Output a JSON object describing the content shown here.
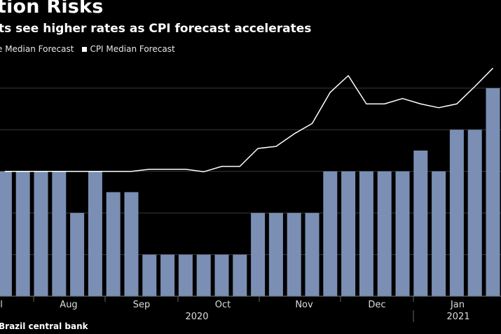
{
  "title": "tion Risks",
  "subtitle": "ts see higher rates as CPI forecast accelerates",
  "legend": {
    "bar_label": "e Median Forecast",
    "line_label": "CPI Median Forecast"
  },
  "source": "Brazil central bank",
  "colors": {
    "bar": "#7a8fb3",
    "line": "#ffffff",
    "grid": "#3a3a3a",
    "background": "#000000"
  },
  "chart_data": {
    "type": "bar",
    "series": [
      {
        "name": "e Median Forecast",
        "type": "bar",
        "values": [
          3,
          3,
          3,
          3,
          2,
          3,
          2.5,
          2.5,
          1,
          1,
          1,
          1,
          1,
          1,
          2,
          2,
          2,
          2,
          3,
          3,
          3,
          3,
          3,
          3.5,
          3,
          4,
          4,
          5
        ]
      },
      {
        "name": "CPI Median Forecast",
        "type": "line",
        "values": [
          3,
          3,
          3,
          3,
          3,
          3,
          3,
          3,
          3.05,
          3.05,
          3.05,
          2.99,
          3.12,
          3.12,
          3.55,
          3.6,
          3.9,
          4.15,
          4.9,
          5.3,
          4.62,
          4.62,
          4.75,
          4.62,
          4.53,
          4.62,
          5.04,
          5.48
        ]
      }
    ],
    "x_labels": [
      "l",
      "Aug",
      "Sep",
      "Oct",
      "Nov",
      "Dec",
      "Jan"
    ],
    "year_labels": [
      "2020",
      "2021"
    ],
    "ylim": [
      0,
      5.25
    ],
    "grid": true
  }
}
